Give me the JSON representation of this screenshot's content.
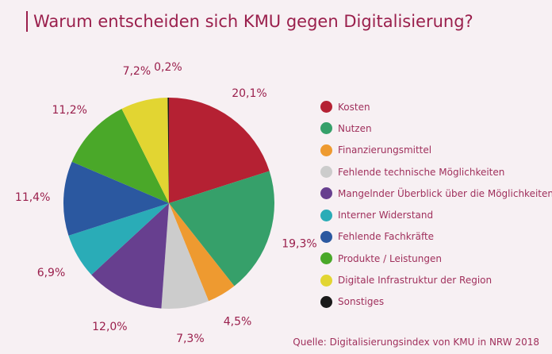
{
  "chart_data": {
    "type": "pie",
    "title": "Warum entscheiden sich KMU gegen Digitalisierung?",
    "source": "Quelle: Digitalisierungsindex von KMU in NRW 2018",
    "legend_placement": "right",
    "categories": [
      "Kosten",
      "Nutzen",
      "Finanzierungsmittel",
      "Fehlende technische Möglichkeiten",
      "Mangelnder Überblick über die Möglichkeiten",
      "Interner Widerstand",
      "Fehlende Fachkräfte",
      "Produkte / Leistungen",
      "Digitale Infrastruktur der Region",
      "Sonstiges"
    ],
    "values": [
      20.1,
      19.3,
      4.5,
      7.3,
      12.0,
      6.9,
      11.4,
      11.2,
      7.2,
      0.2
    ],
    "labels": [
      "20,1%",
      "19,3%",
      "4,5%",
      "7,3%",
      "12,0%",
      "6,9%",
      "11,4%",
      "11,2%",
      "7,2%",
      "0,2%"
    ],
    "colors": [
      "#b52133",
      "#36a06a",
      "#ee9a30",
      "#cccccc",
      "#673f8f",
      "#2aacb7",
      "#2b58a0",
      "#4aa829",
      "#e2d532",
      "#1a1a1a"
    ]
  }
}
